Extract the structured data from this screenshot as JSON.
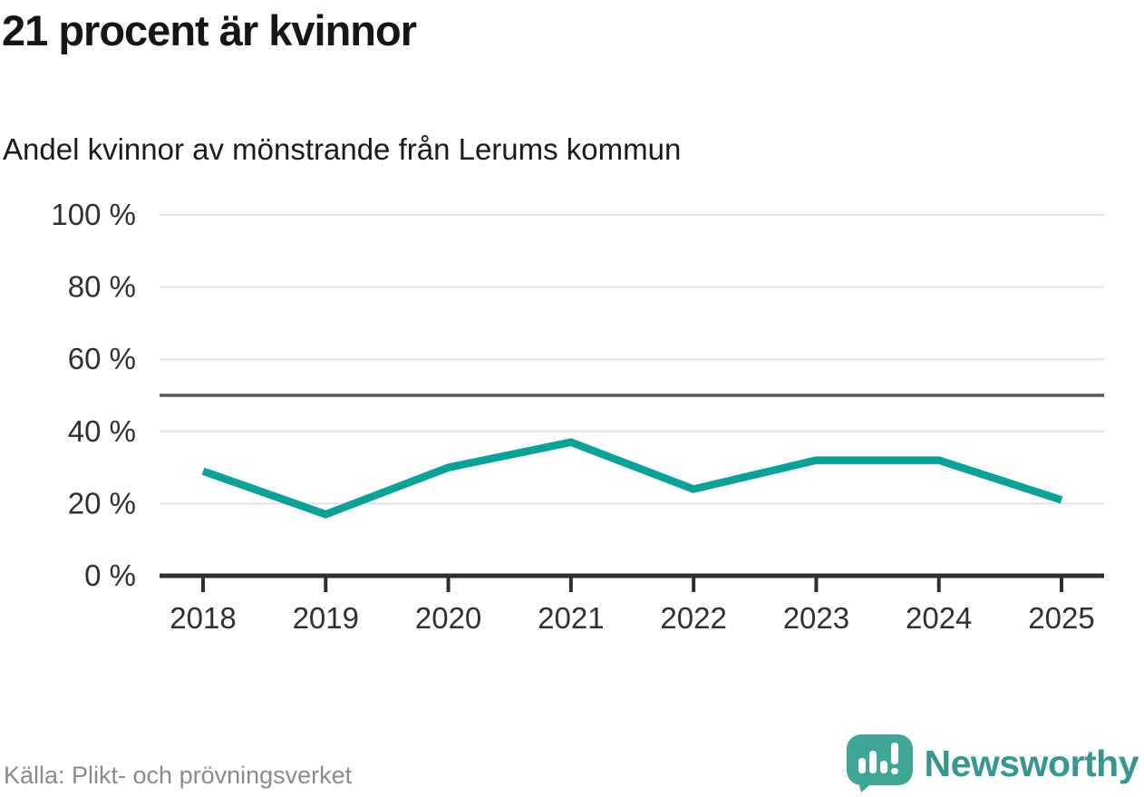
{
  "header": {
    "title": "21 procent är kvinnor",
    "subtitle": "Andel kvinnor av mönstrande från Lerums kommun"
  },
  "chart_data": {
    "type": "line",
    "title": "21 procent är kvinnor",
    "subtitle": "Andel kvinnor av mönstrande från Lerums kommun",
    "categories": [
      "2018",
      "2019",
      "2020",
      "2021",
      "2022",
      "2023",
      "2024",
      "2025"
    ],
    "values": [
      29,
      17,
      30,
      37,
      24,
      32,
      32,
      21
    ],
    "unit": "%",
    "xlabel": "",
    "ylabel": "",
    "ylim": [
      0,
      100
    ],
    "yticks": [
      0,
      20,
      40,
      60,
      80,
      100
    ],
    "ytick_label_format": "{v} %",
    "reference_line": 50,
    "grid": true,
    "legend_position": "none",
    "colors": {
      "line": "#07a399",
      "grid": "#e2e2e2",
      "reference_line": "#55565a",
      "axis": "#2e2e2e",
      "tick_labels": "#303030"
    }
  },
  "footer": {
    "source": "Källa: Plikt- och prövningsverket",
    "brand": "Newsworthy",
    "brand_color": "#35978f",
    "brand_icon": "speech-bubble-bar-chart-icon",
    "brand_icon_color": "#3fa597"
  }
}
